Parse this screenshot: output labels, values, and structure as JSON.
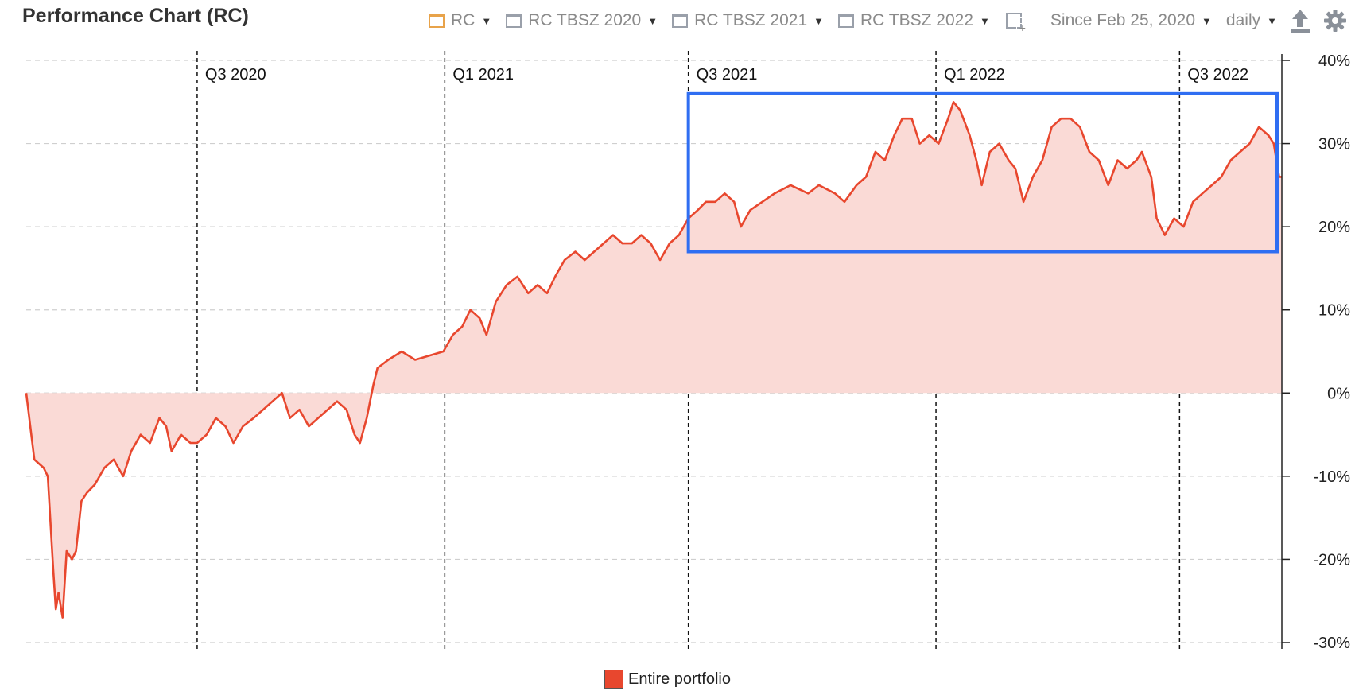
{
  "header": {
    "title": "Performance Chart (RC)",
    "toolbar": [
      {
        "label": "RC",
        "icon": "orange-calendar-icon"
      },
      {
        "label": "RC TBSZ 2020",
        "icon": "calendar-icon"
      },
      {
        "label": "RC TBSZ 2021",
        "icon": "calendar-icon"
      },
      {
        "label": "RC TBSZ 2022",
        "icon": "calendar-icon"
      }
    ],
    "range": "Since Feb 25, 2020",
    "interval": "daily",
    "export_icon": "export-icon",
    "settings_icon": "gear-icon"
  },
  "chart_data": {
    "type": "area",
    "series": [
      {
        "name": "Entire portfolio",
        "color": "#e8472e",
        "fill": "#fadad6",
        "points": [
          [
            "2020-02-25",
            0
          ],
          [
            "2020-03-02",
            -8
          ],
          [
            "2020-03-09",
            -9
          ],
          [
            "2020-03-12",
            -10
          ],
          [
            "2020-03-16",
            -21
          ],
          [
            "2020-03-18",
            -26
          ],
          [
            "2020-03-20",
            -24
          ],
          [
            "2020-03-23",
            -27
          ],
          [
            "2020-03-26",
            -19
          ],
          [
            "2020-03-30",
            -20
          ],
          [
            "2020-04-02",
            -19
          ],
          [
            "2020-04-06",
            -13
          ],
          [
            "2020-04-10",
            -12
          ],
          [
            "2020-04-16",
            -11
          ],
          [
            "2020-04-23",
            -9
          ],
          [
            "2020-04-30",
            -8
          ],
          [
            "2020-05-07",
            -10
          ],
          [
            "2020-05-13",
            -7
          ],
          [
            "2020-05-20",
            -5
          ],
          [
            "2020-05-27",
            -6
          ],
          [
            "2020-06-03",
            -3
          ],
          [
            "2020-06-08",
            -4
          ],
          [
            "2020-06-12",
            -7
          ],
          [
            "2020-06-19",
            -5
          ],
          [
            "2020-06-26",
            -6
          ],
          [
            "2020-07-01",
            -6
          ],
          [
            "2020-07-08",
            -5
          ],
          [
            "2020-07-15",
            -3
          ],
          [
            "2020-07-22",
            -4
          ],
          [
            "2020-07-28",
            -6
          ],
          [
            "2020-08-04",
            -4
          ],
          [
            "2020-08-12",
            -3
          ],
          [
            "2020-08-19",
            -2
          ],
          [
            "2020-08-26",
            -1
          ],
          [
            "2020-09-02",
            0
          ],
          [
            "2020-09-08",
            -3
          ],
          [
            "2020-09-15",
            -2
          ],
          [
            "2020-09-22",
            -4
          ],
          [
            "2020-09-29",
            -3
          ],
          [
            "2020-10-06",
            -2
          ],
          [
            "2020-10-13",
            -1
          ],
          [
            "2020-10-20",
            -2
          ],
          [
            "2020-10-26",
            -5
          ],
          [
            "2020-10-30",
            -6
          ],
          [
            "2020-11-04",
            -3
          ],
          [
            "2020-11-09",
            1
          ],
          [
            "2020-11-12",
            3
          ],
          [
            "2020-11-20",
            4
          ],
          [
            "2020-11-30",
            5
          ],
          [
            "2020-12-10",
            4
          ],
          [
            "2020-12-31",
            5
          ],
          [
            "2021-01-07",
            7
          ],
          [
            "2021-01-14",
            8
          ],
          [
            "2021-01-20",
            10
          ],
          [
            "2021-01-27",
            9
          ],
          [
            "2021-02-01",
            7
          ],
          [
            "2021-02-08",
            11
          ],
          [
            "2021-02-16",
            13
          ],
          [
            "2021-02-24",
            14
          ],
          [
            "2021-03-04",
            12
          ],
          [
            "2021-03-11",
            13
          ],
          [
            "2021-03-18",
            12
          ],
          [
            "2021-03-24",
            14
          ],
          [
            "2021-03-31",
            16
          ],
          [
            "2021-04-08",
            17
          ],
          [
            "2021-04-15",
            16
          ],
          [
            "2021-04-22",
            17
          ],
          [
            "2021-04-29",
            18
          ],
          [
            "2021-05-06",
            19
          ],
          [
            "2021-05-13",
            18
          ],
          [
            "2021-05-20",
            18
          ],
          [
            "2021-05-27",
            19
          ],
          [
            "2021-06-03",
            18
          ],
          [
            "2021-06-10",
            16
          ],
          [
            "2021-06-17",
            18
          ],
          [
            "2021-06-24",
            19
          ],
          [
            "2021-07-01",
            21
          ],
          [
            "2021-07-08",
            22
          ],
          [
            "2021-07-14",
            23
          ],
          [
            "2021-07-21",
            23
          ],
          [
            "2021-07-28",
            24
          ],
          [
            "2021-08-04",
            23
          ],
          [
            "2021-08-09",
            20
          ],
          [
            "2021-08-16",
            22
          ],
          [
            "2021-08-25",
            23
          ],
          [
            "2021-09-03",
            24
          ],
          [
            "2021-09-15",
            25
          ],
          [
            "2021-09-28",
            24
          ],
          [
            "2021-10-06",
            25
          ],
          [
            "2021-10-18",
            24
          ],
          [
            "2021-10-25",
            23
          ],
          [
            "2021-11-03",
            25
          ],
          [
            "2021-11-10",
            26
          ],
          [
            "2021-11-17",
            29
          ],
          [
            "2021-11-24",
            28
          ],
          [
            "2021-12-01",
            31
          ],
          [
            "2021-12-07",
            33
          ],
          [
            "2021-12-14",
            33
          ],
          [
            "2021-12-20",
            30
          ],
          [
            "2021-12-27",
            31
          ],
          [
            "2022-01-03",
            30
          ],
          [
            "2022-01-10",
            33
          ],
          [
            "2022-01-14",
            35
          ],
          [
            "2022-01-19",
            34
          ],
          [
            "2022-01-26",
            31
          ],
          [
            "2022-01-31",
            28
          ],
          [
            "2022-02-04",
            25
          ],
          [
            "2022-02-10",
            29
          ],
          [
            "2022-02-17",
            30
          ],
          [
            "2022-02-24",
            28
          ],
          [
            "2022-03-01",
            27
          ],
          [
            "2022-03-07",
            23
          ],
          [
            "2022-03-14",
            26
          ],
          [
            "2022-03-21",
            28
          ],
          [
            "2022-03-28",
            32
          ],
          [
            "2022-04-04",
            33
          ],
          [
            "2022-04-11",
            33
          ],
          [
            "2022-04-18",
            32
          ],
          [
            "2022-04-25",
            29
          ],
          [
            "2022-05-02",
            28
          ],
          [
            "2022-05-09",
            25
          ],
          [
            "2022-05-16",
            28
          ],
          [
            "2022-05-23",
            27
          ],
          [
            "2022-05-30",
            28
          ],
          [
            "2022-06-03",
            29
          ],
          [
            "2022-06-10",
            26
          ],
          [
            "2022-06-14",
            21
          ],
          [
            "2022-06-20",
            19
          ],
          [
            "2022-06-27",
            21
          ],
          [
            "2022-07-04",
            20
          ],
          [
            "2022-07-11",
            23
          ],
          [
            "2022-07-18",
            24
          ],
          [
            "2022-07-25",
            25
          ],
          [
            "2022-08-01",
            26
          ],
          [
            "2022-08-08",
            28
          ],
          [
            "2022-08-15",
            29
          ],
          [
            "2022-08-22",
            30
          ],
          [
            "2022-08-29",
            32
          ],
          [
            "2022-09-05",
            31
          ],
          [
            "2022-09-09",
            30
          ],
          [
            "2022-09-13",
            26
          ],
          [
            "2022-09-15",
            26
          ]
        ]
      }
    ],
    "x_start": "2020-02-25",
    "x_end": "2022-09-15",
    "quarter_markers": [
      {
        "label": "Q3 2020",
        "date": "2020-07-01"
      },
      {
        "label": "Q1 2021",
        "date": "2021-01-01"
      },
      {
        "label": "Q3 2021",
        "date": "2021-07-01"
      },
      {
        "label": "Q1 2022",
        "date": "2022-01-01"
      },
      {
        "label": "Q3 2022",
        "date": "2022-07-01"
      }
    ],
    "ylim": [
      -30,
      40
    ],
    "yticks": [
      40,
      30,
      20,
      10,
      0,
      -10,
      -20,
      -30
    ],
    "ytick_labels": [
      "40%",
      "30%",
      "20%",
      "10%",
      "0%",
      "-10%",
      "-20%",
      "-30%"
    ],
    "grid": true,
    "legend_position": "bottom",
    "highlight": {
      "x_from": "2021-07-01",
      "x_to": "2022-09-15",
      "y_from": 17,
      "y_to": 36,
      "color": "#2f6ef2"
    }
  }
}
